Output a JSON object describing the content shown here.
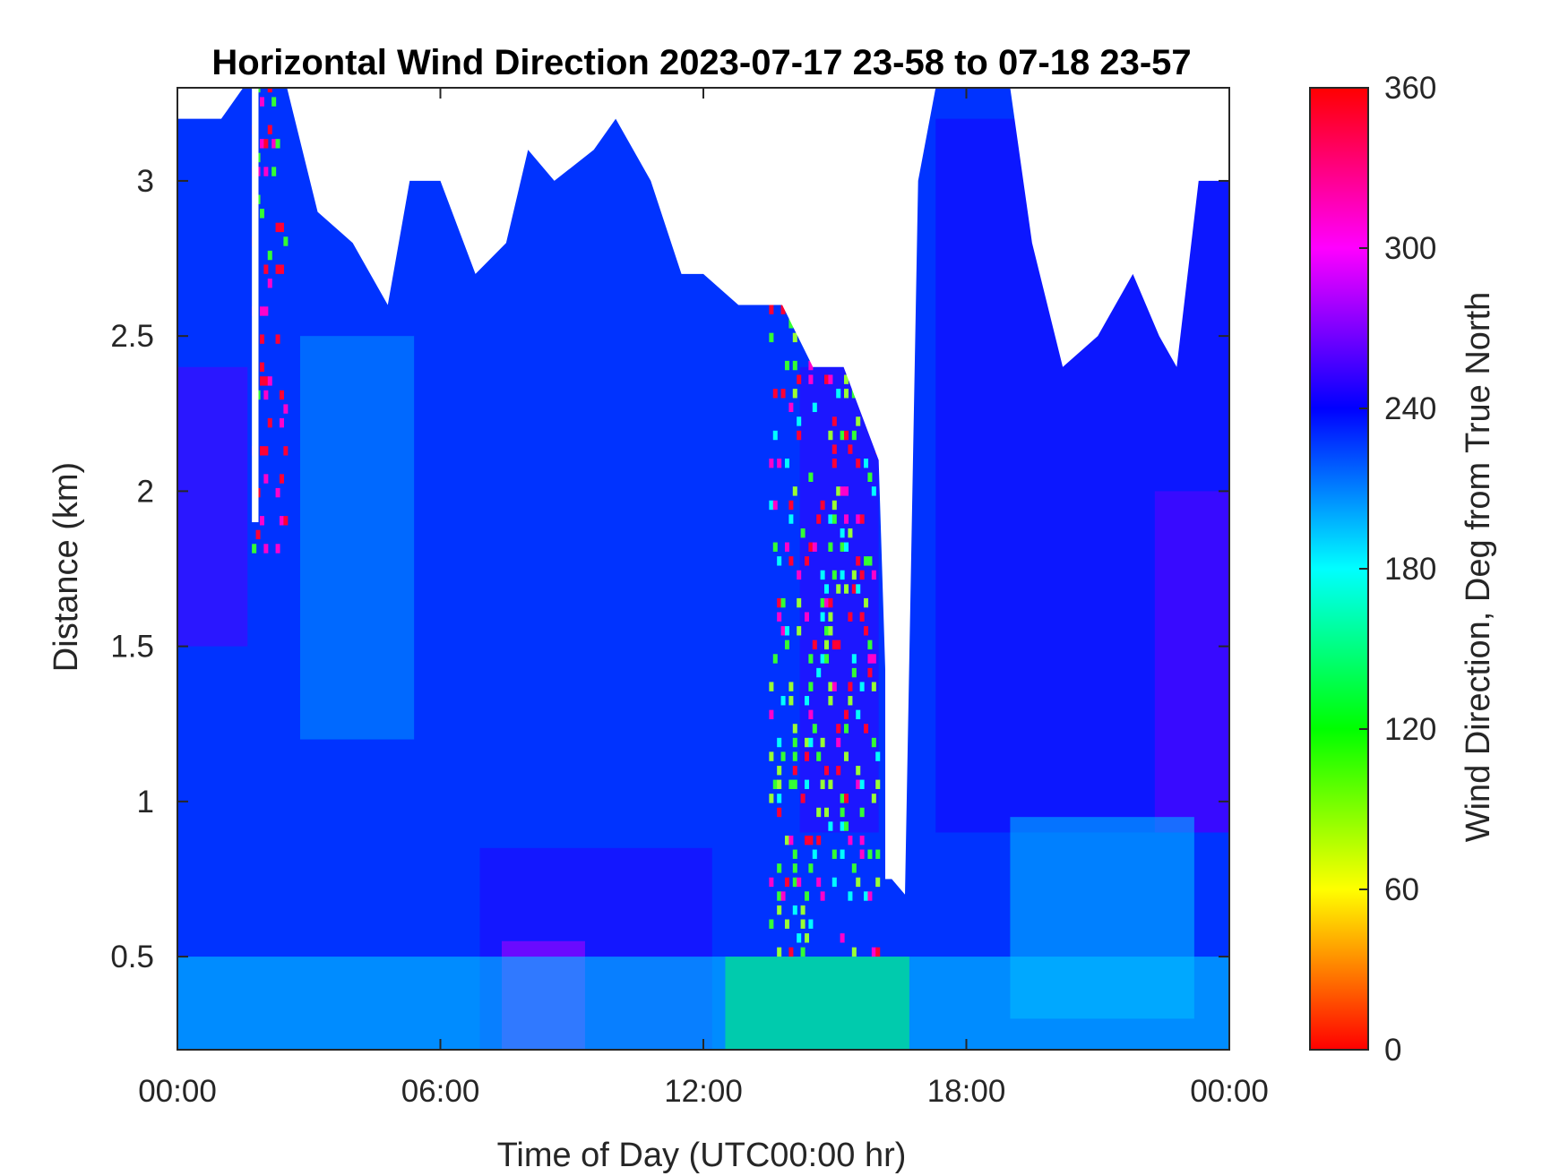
{
  "chart_data": {
    "type": "heatmap",
    "title": "Horizontal Wind Direction 2023-07-17 23-58 to 07-18 23-57",
    "xlabel": "Time of Day (UTC00:00 hr)",
    "ylabel": "Distance (km)",
    "xlim": [
      0,
      24
    ],
    "ylim": [
      0.2,
      3.3
    ],
    "x_ticks": [
      {
        "value": 0,
        "label": "00:00"
      },
      {
        "value": 6,
        "label": "06:00"
      },
      {
        "value": 12,
        "label": "12:00"
      },
      {
        "value": 18,
        "label": "18:00"
      },
      {
        "value": 24,
        "label": "00:00"
      }
    ],
    "y_ticks": [
      {
        "value": 0.5,
        "label": "0.5"
      },
      {
        "value": 1,
        "label": "1"
      },
      {
        "value": 1.5,
        "label": "1.5"
      },
      {
        "value": 2,
        "label": "2"
      },
      {
        "value": 2.5,
        "label": "2.5"
      },
      {
        "value": 3,
        "label": "3"
      }
    ],
    "colorbar": {
      "label": "Wind Direction, Deg from True North",
      "range": [
        0,
        360
      ],
      "ticks": [
        {
          "value": 0,
          "label": "0"
        },
        {
          "value": 60,
          "label": "60"
        },
        {
          "value": 120,
          "label": "120"
        },
        {
          "value": 180,
          "label": "180"
        },
        {
          "value": 240,
          "label": "240"
        },
        {
          "value": 300,
          "label": "300"
        },
        {
          "value": 360,
          "label": "360"
        }
      ],
      "colormap": "hsv",
      "colors": [
        "#ff0000",
        "#ffff00",
        "#00ff00",
        "#00ffff",
        "#0000ff",
        "#ff00ff",
        "#ff0000"
      ]
    },
    "grid": false,
    "missing_data_color": "#ffffff",
    "data_top_km": [
      {
        "x": 0.0,
        "y": 3.2
      },
      {
        "x": 1.0,
        "y": 3.2
      },
      {
        "x": 1.5,
        "y": 3.3
      },
      {
        "x": 2.5,
        "y": 3.3
      },
      {
        "x": 3.2,
        "y": 2.9
      },
      {
        "x": 4.0,
        "y": 2.8
      },
      {
        "x": 4.8,
        "y": 2.6
      },
      {
        "x": 5.3,
        "y": 3.0
      },
      {
        "x": 6.0,
        "y": 3.0
      },
      {
        "x": 6.8,
        "y": 2.7
      },
      {
        "x": 7.5,
        "y": 2.8
      },
      {
        "x": 8.0,
        "y": 3.1
      },
      {
        "x": 8.6,
        "y": 3.0
      },
      {
        "x": 9.5,
        "y": 3.1
      },
      {
        "x": 10.0,
        "y": 3.2
      },
      {
        "x": 10.8,
        "y": 3.0
      },
      {
        "x": 11.5,
        "y": 2.7
      },
      {
        "x": 12.0,
        "y": 2.7
      },
      {
        "x": 12.8,
        "y": 2.6
      },
      {
        "x": 13.8,
        "y": 2.6
      },
      {
        "x": 14.5,
        "y": 2.4
      },
      {
        "x": 15.2,
        "y": 2.4
      },
      {
        "x": 16.0,
        "y": 2.1
      },
      {
        "x": 16.3,
        "y": 0.75
      },
      {
        "x": 16.6,
        "y": 0.7
      },
      {
        "x": 16.9,
        "y": 3.0
      },
      {
        "x": 17.3,
        "y": 3.3
      },
      {
        "x": 19.0,
        "y": 3.3
      },
      {
        "x": 19.5,
        "y": 2.8
      },
      {
        "x": 20.2,
        "y": 2.4
      },
      {
        "x": 21.0,
        "y": 2.5
      },
      {
        "x": 21.8,
        "y": 2.7
      },
      {
        "x": 22.4,
        "y": 2.5
      },
      {
        "x": 22.8,
        "y": 2.4
      },
      {
        "x": 23.3,
        "y": 3.0
      },
      {
        "x": 24.0,
        "y": 3.0
      }
    ],
    "data_gaps": [
      {
        "x0": 1.7,
        "x1": 1.85,
        "y0": 1.9,
        "y1": 3.3
      },
      {
        "x0": 16.15,
        "x1": 16.6,
        "y0": 0.75,
        "y1": 3.3
      }
    ],
    "direction_regions": [
      {
        "x0": 0,
        "x1": 24,
        "y0": 0.2,
        "y1": 3.3,
        "deg": 228
      },
      {
        "x0": 0,
        "x1": 1.6,
        "y0": 1.5,
        "y1": 2.4,
        "deg": 258
      },
      {
        "x0": 2.8,
        "x1": 5.4,
        "y0": 1.2,
        "y1": 2.5,
        "deg": 205
      },
      {
        "x0": 6.9,
        "x1": 12.2,
        "y0": 0.2,
        "y1": 0.85,
        "deg": 248
      },
      {
        "x0": 7.4,
        "x1": 9.3,
        "y0": 0.2,
        "y1": 0.55,
        "deg": 282
      },
      {
        "x0": 14.2,
        "x1": 16.0,
        "y0": 0.9,
        "y1": 2.4,
        "deg": 252
      },
      {
        "x0": 17.3,
        "x1": 24,
        "y0": 0.9,
        "y1": 3.2,
        "deg": 245
      },
      {
        "x0": 22.3,
        "x1": 24,
        "y0": 0.9,
        "y1": 2.0,
        "deg": 262
      },
      {
        "x0": 0,
        "x1": 24,
        "y0": 0.2,
        "y1": 0.5,
        "deg": 190
      },
      {
        "x0": 12.5,
        "x1": 16.7,
        "y0": 0.2,
        "y1": 0.5,
        "deg": 145
      },
      {
        "x0": 19.0,
        "x1": 23.2,
        "y0": 0.3,
        "y1": 0.95,
        "deg": 195
      }
    ],
    "noisy_columns": [
      {
        "x0": 13.5,
        "x1": 16.0,
        "y0": 0.5,
        "y1": 2.7,
        "colors": [
          "#ff0033",
          "#33ff33",
          "#99ff33",
          "#00ffff",
          "#ff00cc"
        ]
      },
      {
        "x0": 1.7,
        "x1": 2.5,
        "y0": 1.8,
        "y1": 3.3,
        "colors": [
          "#ff0033",
          "#33ff33",
          "#ff00cc"
        ]
      }
    ]
  }
}
